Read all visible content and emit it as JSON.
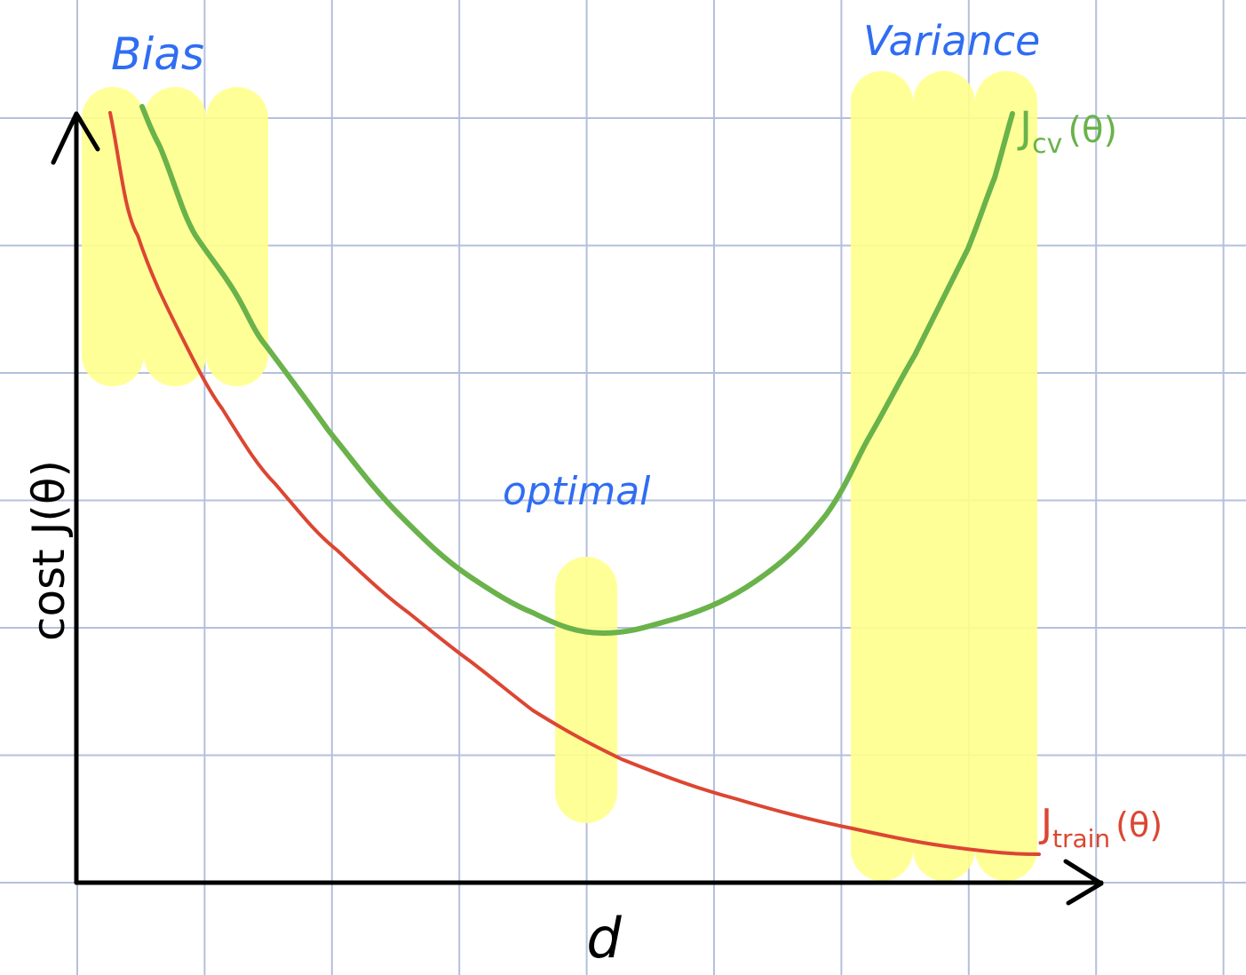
{
  "labels": {
    "bias": "Bias",
    "variance": "Variance",
    "optimal": "optimal",
    "y_axis": "cost J(θ)",
    "x_axis": "d",
    "cv": {
      "main": "J",
      "sub": "cv",
      "arg": "(θ)"
    },
    "train": {
      "main": "J",
      "sub": "train",
      "arg": "(θ)"
    }
  }
}
